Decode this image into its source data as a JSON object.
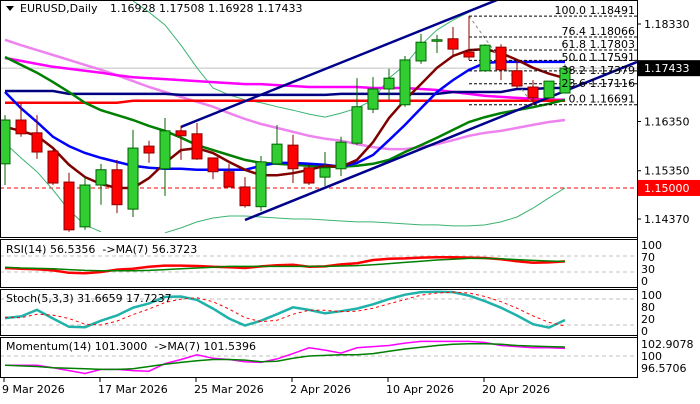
{
  "header": {
    "symbol_timeframe": "EURUSD,Daily",
    "ohlc": "1.16928 1.17508 1.16928 1.17433",
    "menu_icon": "triangle-down-icon"
  },
  "colors": {
    "bull": "#32CD32",
    "bull_border": "#006400",
    "bear": "#FF0000",
    "bear_border": "#8B0000",
    "channel": "#00008B",
    "level_red": "#FF0000",
    "ma_maroon": "#800000",
    "ma_blue": "#0000FF",
    "ma_green": "#008000",
    "ma_magenta": "#FF00FF",
    "ma_orchid": "#EE82EE",
    "ma_navy": "#000080",
    "bollinger": "#3CB371",
    "rsi": "#FF0000",
    "rsi_ma": "#008000",
    "stoch_main": "#20B2AA",
    "stoch_signal": "#FF0000",
    "momentum": "#FF00FF",
    "momentum_ma": "#008000"
  },
  "chart_data": [
    {
      "type": "candlestick",
      "title": "EURUSD,Daily",
      "price_axis_ticks": [
        "1.18330",
        "1.16350",
        "1.15350",
        "1.14370"
      ],
      "current_price": "1.17433",
      "alert_level": "1.15000",
      "x_tick_labels": [
        {
          "date": "9 Mar 2026",
          "bar": 0
        },
        {
          "date": "17 Mar 2026",
          "bar": 6
        },
        {
          "date": "25 Mar 2026",
          "bar": 12
        },
        {
          "date": "2 Apr 2026",
          "bar": 18
        },
        {
          "date": "10 Apr 2026",
          "bar": 24
        },
        {
          "date": "20 Apr 2026",
          "bar": 30
        }
      ],
      "dates": [
        "2026-03-09",
        "2026-03-10",
        "2026-03-11",
        "2026-03-12",
        "2026-03-13",
        "2026-03-16",
        "2026-03-17",
        "2026-03-18",
        "2026-03-19",
        "2026-03-20",
        "2026-03-23",
        "2026-03-24",
        "2026-03-25",
        "2026-03-26",
        "2026-03-27",
        "2026-03-30",
        "2026-03-31",
        "2026-04-01",
        "2026-04-02",
        "2026-04-03",
        "2026-04-06",
        "2026-04-07",
        "2026-04-08",
        "2026-04-09",
        "2026-04-10",
        "2026-04-13",
        "2026-04-14",
        "2026-04-15",
        "2026-04-16",
        "2026-04-17",
        "2026-04-20",
        "2026-04-21",
        "2026-04-22",
        "2026-04-23",
        "2026-04-24",
        "2026-04-27"
      ],
      "ohlc": [
        [
          1.1549,
          1.1648,
          1.1506,
          1.1638
        ],
        [
          1.1638,
          1.1673,
          1.1604,
          1.161
        ],
        [
          1.1612,
          1.1648,
          1.1559,
          1.1573
        ],
        [
          1.1575,
          1.1577,
          1.1506,
          1.151
        ],
        [
          1.1512,
          1.1531,
          1.1411,
          1.1415
        ],
        [
          1.1421,
          1.1522,
          1.1415,
          1.1506
        ],
        [
          1.1506,
          1.1549,
          1.1466,
          1.1537
        ],
        [
          1.1537,
          1.1557,
          1.1449,
          1.1466
        ],
        [
          1.1457,
          1.1618,
          1.1441,
          1.1581
        ],
        [
          1.1585,
          1.1596,
          1.1551,
          1.1571
        ],
        [
          1.1539,
          1.1642,
          1.1484,
          1.1616
        ],
        [
          1.1616,
          1.1626,
          1.1557,
          1.1606
        ],
        [
          1.161,
          1.1632,
          1.1557,
          1.1559
        ],
        [
          1.1561,
          1.1561,
          1.1518,
          1.1533
        ],
        [
          1.1533,
          1.1549,
          1.1502,
          1.1502
        ],
        [
          1.1502,
          1.1522,
          1.146,
          1.1464
        ],
        [
          1.1462,
          1.1565,
          1.1453,
          1.1553
        ],
        [
          1.1549,
          1.1628,
          1.1549,
          1.1589
        ],
        [
          1.1587,
          1.1608,
          1.151,
          1.1539
        ],
        [
          1.1541,
          1.1547,
          1.1506,
          1.151
        ],
        [
          1.1522,
          1.1573,
          1.1504,
          1.1541
        ],
        [
          1.1539,
          1.1604,
          1.1524,
          1.1593
        ],
        [
          1.1591,
          1.1723,
          1.1587,
          1.1665
        ],
        [
          1.166,
          1.1725,
          1.1652,
          1.1701
        ],
        [
          1.1701,
          1.1742,
          1.1679,
          1.1723
        ],
        [
          1.1669,
          1.1768,
          1.1665,
          1.176
        ],
        [
          1.1758,
          1.1813,
          1.1752,
          1.1796
        ],
        [
          1.1798,
          1.1811,
          1.1774,
          1.1801
        ],
        [
          1.1803,
          1.1827,
          1.177,
          1.1782
        ],
        [
          1.1776,
          1.18491,
          1.176,
          1.1766
        ],
        [
          1.1738,
          1.1792,
          1.1736,
          1.179
        ],
        [
          1.1786,
          1.1792,
          1.1719,
          1.174
        ],
        [
          1.1738,
          1.176,
          1.1703,
          1.1707
        ],
        [
          1.1705,
          1.1719,
          1.16691,
          1.1683
        ],
        [
          1.1683,
          1.1717,
          1.1681,
          1.1717
        ],
        [
          1.16928,
          1.17508,
          1.16928,
          1.17433
        ]
      ],
      "overlays": {
        "maroon": [
          1.1624,
          1.1616,
          1.1606,
          1.1581,
          1.1547,
          1.1522,
          1.1508,
          1.15,
          1.15,
          1.152,
          1.1551,
          1.1577,
          1.1581,
          1.1571,
          1.1553,
          1.1537,
          1.1526,
          1.1526,
          1.153,
          1.1537,
          1.1545,
          1.1543,
          1.1557,
          1.1593,
          1.1642,
          1.1679,
          1.1711,
          1.1744,
          1.1768,
          1.178,
          1.1782,
          1.1774,
          1.176,
          1.1744,
          1.1732,
          1.1723
        ],
        "blue": [
          1.1695,
          1.1662,
          1.1634,
          1.1604,
          1.1585,
          1.1571,
          1.1561,
          1.1553,
          1.1545,
          1.1541,
          1.1539,
          1.1539,
          1.1537,
          1.1537,
          1.1537,
          1.1537,
          1.1545,
          1.1551,
          1.1551,
          1.1549,
          1.1547,
          1.1543,
          1.1551,
          1.1567,
          1.1597,
          1.1628,
          1.1662,
          1.1695,
          1.1719,
          1.174,
          1.1754,
          1.1756,
          1.1756,
          1.1756,
          1.1756,
          1.1756
        ],
        "green": [
          1.1766,
          1.175,
          1.1734,
          1.1715,
          1.1695,
          1.1673,
          1.1658,
          1.1648,
          1.1638,
          1.1626,
          1.1616,
          1.1602,
          1.1587,
          1.1577,
          1.1567,
          1.1557,
          1.1551,
          1.1549,
          1.1547,
          1.1545,
          1.1543,
          1.1543,
          1.1545,
          1.1549,
          1.1557,
          1.1573,
          1.1587,
          1.1602,
          1.1618,
          1.1634,
          1.1644,
          1.1652,
          1.1658,
          1.1664,
          1.1671,
          1.1679
        ],
        "magenta": [
          1.1764,
          1.1758,
          1.1752,
          1.1746,
          1.1742,
          1.1738,
          1.1734,
          1.1729,
          1.1725,
          1.1723,
          1.1721,
          1.1719,
          1.1717,
          1.1715,
          1.1713,
          1.1711,
          1.1711,
          1.1709,
          1.1707,
          1.1705,
          1.1705,
          1.1705,
          1.1705,
          1.1703,
          1.1703,
          1.1703,
          1.1701,
          1.1699,
          1.1695,
          1.1691,
          1.1687,
          1.1685,
          1.1683,
          1.1681,
          1.1679,
          1.1679
        ],
        "orchid": [
          1.1801,
          1.179,
          1.178,
          1.177,
          1.176,
          1.175,
          1.174,
          1.1729,
          1.1717,
          1.1705,
          1.1695,
          1.1685,
          1.1675,
          1.1665,
          1.1652,
          1.164,
          1.163,
          1.1622,
          1.1614,
          1.1606,
          1.16,
          1.1596,
          1.1589,
          1.1583,
          1.1579,
          1.1579,
          1.1583,
          1.1589,
          1.1597,
          1.1606,
          1.1612,
          1.1616,
          1.1622,
          1.1628,
          1.1634,
          1.1638
        ],
        "navy": [
          1.1697,
          1.1697,
          1.1697,
          1.1697,
          1.1691,
          1.1691,
          1.1691,
          1.1691,
          1.1691,
          1.1691,
          1.1691,
          1.1689,
          1.1689,
          1.1689,
          1.1689,
          1.1689,
          1.1689,
          1.1689,
          1.1689,
          1.1689,
          1.1689,
          1.1691,
          1.1691,
          1.1691,
          1.1691,
          1.1691,
          1.1691,
          1.1691,
          1.1695,
          1.1695,
          1.1695,
          1.1695,
          1.1701,
          1.1701,
          1.1703,
          1.1703
        ],
        "red": [
          1.1673,
          1.1673,
          1.1673,
          1.1673,
          1.1673,
          1.1673,
          1.1673,
          1.1673,
          1.1677,
          1.1677,
          1.1677,
          1.1677,
          1.1677,
          1.1677,
          1.1677,
          1.1677,
          1.1677,
          1.1677,
          1.1677,
          1.1677,
          1.1677,
          1.1677,
          1.1677,
          1.1677,
          1.1677,
          1.1677,
          1.1677,
          1.1677,
          1.1677,
          1.1677,
          1.1677,
          1.1677,
          1.1677,
          1.1677,
          1.1677,
          1.1677
        ],
        "bollinger_upper": [
          null,
          null,
          null,
          null,
          null,
          null,
          null,
          null,
          1.188,
          1.1857,
          1.1831,
          1.179,
          1.1744,
          1.1703,
          1.1689,
          1.1679,
          1.1673,
          1.1665,
          1.1658,
          1.165,
          1.1644,
          1.1652,
          1.1662,
          1.1679,
          1.1723,
          1.175,
          1.179,
          1.1821,
          1.1841,
          1.1857,
          1.1872,
          null,
          null,
          null,
          null,
          null
        ],
        "bollinger_lower": [
          1.1591,
          1.1561,
          1.1533,
          1.1496,
          1.1455,
          1.1425,
          1.1411,
          null,
          null,
          null,
          1.1409,
          1.1419,
          1.1431,
          1.1439,
          1.1443,
          1.1443,
          1.1441,
          1.1439,
          1.1437,
          1.1437,
          1.1435,
          1.1433,
          1.1431,
          1.1431,
          1.1429,
          1.1427,
          1.1425,
          1.1425,
          1.1423,
          1.1423,
          1.1425,
          1.1431,
          1.1441,
          1.1459,
          1.148,
          1.15
        ]
      },
      "channel": {
        "upper": [
          {
            "bar": 11,
            "price": 1.1624
          },
          {
            "bar": 30,
            "price": 1.1872
          }
        ],
        "lower": [
          {
            "bar": 15,
            "price": 1.1435
          },
          {
            "bar": 35,
            "price": 1.1697
          }
        ]
      },
      "fibonacci": {
        "from": {
          "bar": 29,
          "price": 1.18491
        },
        "to": {
          "bar": 33,
          "price": 1.16691
        },
        "levels": [
          {
            "label": "100.0 1.18491",
            "price": 1.18491
          },
          {
            "label": "76.4 1.18066",
            "price": 1.18066
          },
          {
            "label": "61.8 1.17803",
            "price": 1.17803
          },
          {
            "label": "50.0 1.17591",
            "price": 1.17591
          },
          {
            "label": "38.2 1.17379",
            "price": 1.17379
          },
          {
            "label": "23.6 1.17116",
            "price": 1.17116
          },
          {
            "label": "0.0 1.16691",
            "price": 1.16691
          }
        ]
      }
    },
    {
      "type": "line",
      "title": "RSI(14) 56.5356  ->MA(7) 56.3723",
      "ylim": [
        0,
        100
      ],
      "levels": [
        70,
        30
      ],
      "y_tick_labels": [
        "100",
        "70",
        "30",
        "0"
      ],
      "series": [
        {
          "name": "RSI(14)",
          "values": [
            40,
            38,
            37,
            34,
            28,
            27,
            30,
            36,
            38,
            43,
            46,
            46,
            45,
            43,
            42,
            40,
            44,
            47,
            48,
            43,
            44,
            49,
            52,
            60,
            63,
            64,
            66,
            67,
            67,
            66,
            65,
            62,
            57,
            53,
            54,
            56.5356
          ]
        },
        {
          "name": "MA(7)",
          "values": [
            42,
            40,
            39,
            38,
            36,
            34,
            33,
            33,
            33,
            34,
            36,
            38,
            40,
            42,
            44,
            44,
            44,
            44,
            44,
            44,
            44,
            45,
            46,
            48,
            51,
            54,
            57,
            60,
            62,
            64,
            64,
            63,
            61,
            59,
            57.5,
            56.3723
          ]
        }
      ]
    },
    {
      "type": "line",
      "title": "Stoch(5,3,3) 31.6659 17.7237",
      "ylim": [
        0,
        100
      ],
      "levels": [
        80,
        20
      ],
      "y_tick_labels": [
        "100",
        "80",
        "20",
        "0"
      ],
      "series": [
        {
          "name": "main",
          "values": [
            36,
            40,
            55,
            35,
            16,
            15,
            30,
            42,
            60,
            70,
            85,
            86,
            78,
            58,
            35,
            19,
            30,
            45,
            61,
            55,
            47,
            52,
            58,
            68,
            80,
            90,
            96,
            97,
            96,
            88,
            75,
            60,
            42,
            22,
            14,
            31.6659
          ]
        },
        {
          "name": "signal",
          "values": [
            38,
            37,
            45,
            43,
            35,
            22,
            20,
            29,
            44,
            57,
            72,
            80,
            83,
            74,
            57,
            37,
            28,
            31,
            45,
            54,
            54,
            51,
            52,
            59,
            69,
            79,
            89,
            94,
            96,
            94,
            86,
            74,
            59,
            41,
            26,
            17.7237
          ]
        }
      ]
    },
    {
      "type": "line",
      "title": "Momentum(14) 101.3000  ->MA(7) 101.5396",
      "ylim": [
        96.5706,
        102.9078
      ],
      "levels": [
        100
      ],
      "y_tick_labels": [
        "102.9078",
        "100",
        "96.5706"
      ],
      "series": [
        {
          "name": "Momentum(14)",
          "values": [
            98.4,
            98.4,
            98.4,
            98.0,
            97.5,
            97.0,
            97.7,
            97.7,
            97.5,
            97.4,
            98.7,
            99.4,
            100.2,
            99.6,
            99.4,
            99.0,
            98.9,
            99.5,
            100.4,
            101.4,
            101.0,
            100.5,
            101.4,
            101.6,
            101.8,
            102.2,
            102.5,
            102.5,
            102.5,
            102.5,
            102.3,
            101.8,
            101.6,
            101.4,
            101.4,
            101.3
          ]
        },
        {
          "name": "MA(7)",
          "values": [
            98.4,
            98.3,
            98.2,
            98.0,
            97.9,
            97.8,
            97.7,
            97.7,
            97.8,
            98.2,
            98.6,
            98.9,
            99.2,
            99.4,
            99.4,
            99.3,
            99.0,
            99.1,
            99.6,
            100.0,
            100.1,
            100.2,
            100.2,
            100.4,
            100.8,
            101.2,
            101.5,
            101.8,
            102.0,
            102.1,
            102.1,
            102.0,
            101.8,
            101.7,
            101.6,
            101.5396
          ]
        }
      ]
    }
  ]
}
